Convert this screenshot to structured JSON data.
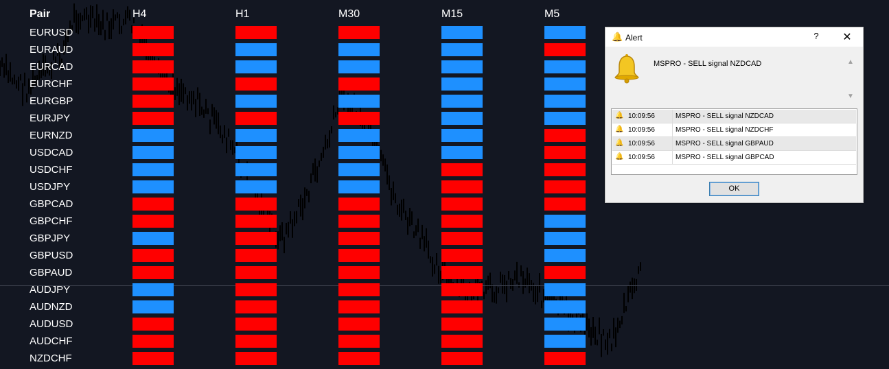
{
  "colors": {
    "sell": "#ff0000",
    "buy": "#1e90ff",
    "background": "#131722"
  },
  "table": {
    "pair_header": "Pair",
    "timeframes": [
      "H4",
      "H1",
      "M30",
      "M15",
      "M5"
    ],
    "rows": [
      {
        "pair": "EURUSD",
        "signals": [
          "sell",
          "sell",
          "sell",
          "buy",
          "buy"
        ]
      },
      {
        "pair": "EURAUD",
        "signals": [
          "sell",
          "buy",
          "buy",
          "buy",
          "sell"
        ]
      },
      {
        "pair": "EURCAD",
        "signals": [
          "sell",
          "buy",
          "buy",
          "buy",
          "buy"
        ]
      },
      {
        "pair": "EURCHF",
        "signals": [
          "sell",
          "sell",
          "sell",
          "buy",
          "buy"
        ]
      },
      {
        "pair": "EURGBP",
        "signals": [
          "sell",
          "buy",
          "buy",
          "buy",
          "buy"
        ]
      },
      {
        "pair": "EURJPY",
        "signals": [
          "sell",
          "sell",
          "sell",
          "buy",
          "buy"
        ]
      },
      {
        "pair": "EURNZD",
        "signals": [
          "buy",
          "buy",
          "buy",
          "buy",
          "sell"
        ]
      },
      {
        "pair": "USDCAD",
        "signals": [
          "buy",
          "buy",
          "buy",
          "buy",
          "sell"
        ]
      },
      {
        "pair": "USDCHF",
        "signals": [
          "buy",
          "buy",
          "buy",
          "sell",
          "sell"
        ]
      },
      {
        "pair": "USDJPY",
        "signals": [
          "buy",
          "buy",
          "buy",
          "sell",
          "sell"
        ]
      },
      {
        "pair": "GBPCAD",
        "signals": [
          "sell",
          "sell",
          "sell",
          "sell",
          "sell"
        ]
      },
      {
        "pair": "GBPCHF",
        "signals": [
          "sell",
          "sell",
          "sell",
          "sell",
          "buy"
        ]
      },
      {
        "pair": "GBPJPY",
        "signals": [
          "buy",
          "sell",
          "sell",
          "sell",
          "buy"
        ]
      },
      {
        "pair": "GBPUSD",
        "signals": [
          "sell",
          "sell",
          "sell",
          "sell",
          "buy"
        ]
      },
      {
        "pair": "GBPAUD",
        "signals": [
          "sell",
          "sell",
          "sell",
          "sell",
          "sell"
        ]
      },
      {
        "pair": "AUDJPY",
        "signals": [
          "buy",
          "sell",
          "sell",
          "sell",
          "buy"
        ]
      },
      {
        "pair": "AUDNZD",
        "signals": [
          "buy",
          "sell",
          "sell",
          "sell",
          "buy"
        ]
      },
      {
        "pair": "AUDUSD",
        "signals": [
          "sell",
          "sell",
          "sell",
          "sell",
          "buy"
        ]
      },
      {
        "pair": "AUDCHF",
        "signals": [
          "sell",
          "sell",
          "sell",
          "sell",
          "buy"
        ]
      },
      {
        "pair": "NZDCHF",
        "signals": [
          "sell",
          "sell",
          "sell",
          "sell",
          "sell"
        ]
      }
    ]
  },
  "alert": {
    "title": "Alert",
    "help": "?",
    "close": "✕",
    "message": "MSPRO - SELL signal NZDCAD",
    "history": [
      {
        "time": "10:09:56",
        "message": "MSPRO - SELL signal NZDCAD"
      },
      {
        "time": "10:09:56",
        "message": "MSPRO - SELL signal NZDCHF"
      },
      {
        "time": "10:09:56",
        "message": "MSPRO - SELL signal GBPAUD"
      },
      {
        "time": "10:09:56",
        "message": "MSPRO - SELL signal GBPCAD"
      }
    ],
    "ok": "OK",
    "icon": "bell-icon"
  }
}
